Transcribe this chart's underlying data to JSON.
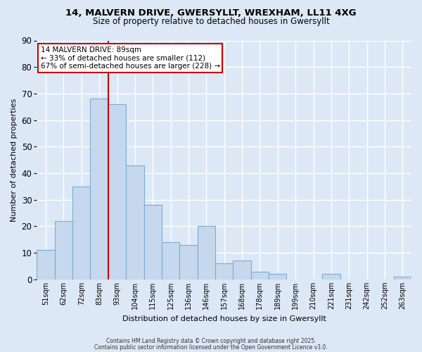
{
  "title": "14, MALVERN DRIVE, GWERSYLLT, WREXHAM, LL11 4XG",
  "subtitle": "Size of property relative to detached houses in Gwersyllt",
  "xlabel": "Distribution of detached houses by size in Gwersyllt",
  "ylabel": "Number of detached properties",
  "bar_color": "#c5d8ee",
  "bar_edge_color": "#7aadd4",
  "categories": [
    "51sqm",
    "62sqm",
    "72sqm",
    "83sqm",
    "93sqm",
    "104sqm",
    "115sqm",
    "125sqm",
    "136sqm",
    "146sqm",
    "157sqm",
    "168sqm",
    "178sqm",
    "189sqm",
    "199sqm",
    "210sqm",
    "221sqm",
    "231sqm",
    "242sqm",
    "252sqm",
    "263sqm"
  ],
  "values": [
    11,
    22,
    35,
    68,
    66,
    43,
    28,
    14,
    13,
    20,
    6,
    7,
    3,
    2,
    0,
    0,
    2,
    0,
    0,
    0,
    1
  ],
  "ylim": [
    0,
    90
  ],
  "yticks": [
    0,
    10,
    20,
    30,
    40,
    50,
    60,
    70,
    80,
    90
  ],
  "vline_x": 3.5,
  "vline_color": "#cc0000",
  "annotation_text": "14 MALVERN DRIVE: 89sqm\n← 33% of detached houses are smaller (112)\n67% of semi-detached houses are larger (228) →",
  "annotation_box_color": "#ffffff",
  "annotation_box_edge": "#cc0000",
  "bg_color": "#dce8f5",
  "grid_color": "#ffffff",
  "footer_line1": "Contains HM Land Registry data © Crown copyright and database right 2025.",
  "footer_line2": "Contains public sector information licensed under the Open Government Licence v3.0."
}
